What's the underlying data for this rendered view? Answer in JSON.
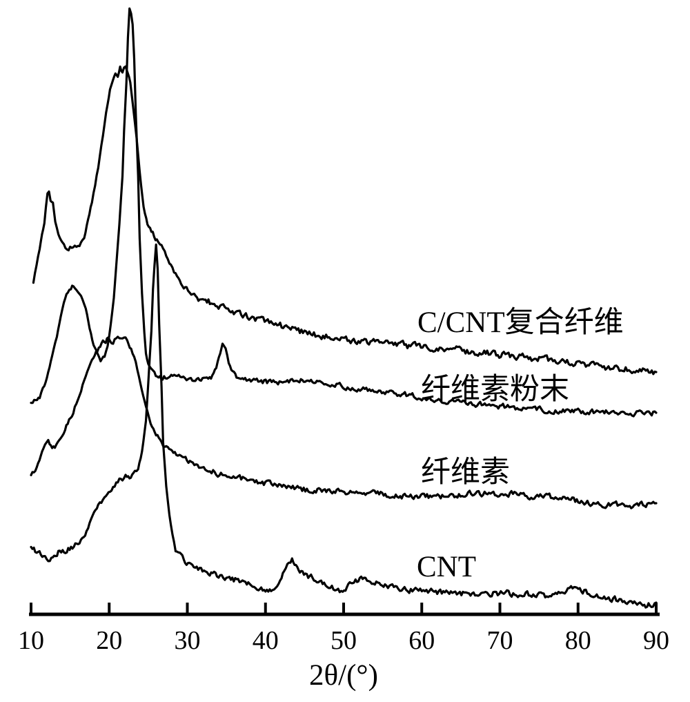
{
  "figure": {
    "background": "#ffffff",
    "ink": "#000000"
  },
  "chart_data": {
    "type": "line",
    "title": "",
    "xlabel": "2θ/(°)",
    "ylabel": "",
    "x_range": [
      10,
      90
    ],
    "x_ticks": [
      10,
      20,
      30,
      40,
      50,
      60,
      70,
      80,
      90
    ],
    "y_axis_note": "XRD intensity in arbitrary units; no y-axis or y-ticks drawn; four traces vertically offset, labels to the right of each trace",
    "grid": false,
    "intensity_units": "arbitrary units (relative height above baseline axis)",
    "series": [
      {
        "id": "c-cnt-composite-fiber",
        "name": "C/CNT复合纤维",
        "peaks_2theta": [
          12.2,
          21.8
        ],
        "noise": 4.5,
        "points": [
          [
            10.3,
            482
          ],
          [
            10.7,
            505
          ],
          [
            11.1,
            530
          ],
          [
            11.4,
            548
          ],
          [
            11.7,
            565
          ],
          [
            11.9,
            590
          ],
          [
            12.1,
            608
          ],
          [
            12.3,
            611
          ],
          [
            12.5,
            600
          ],
          [
            12.8,
            595
          ],
          [
            13.1,
            570
          ],
          [
            13.5,
            550
          ],
          [
            14.0,
            538
          ],
          [
            14.4,
            532
          ],
          [
            15.0,
            530
          ],
          [
            15.6,
            534
          ],
          [
            16.2,
            532
          ],
          [
            16.8,
            545
          ],
          [
            17.3,
            572
          ],
          [
            17.8,
            598
          ],
          [
            18.2,
            622
          ],
          [
            18.6,
            648
          ],
          [
            19.0,
            678
          ],
          [
            19.4,
            710
          ],
          [
            19.8,
            740
          ],
          [
            20.1,
            760
          ],
          [
            20.5,
            778
          ],
          [
            20.8,
            786
          ],
          [
            21.1,
            778
          ],
          [
            21.4,
            792
          ],
          [
            21.7,
            784
          ],
          [
            22.1,
            795
          ],
          [
            22.4,
            786
          ],
          [
            22.7,
            770
          ],
          [
            23.1,
            730
          ],
          [
            23.5,
            690
          ],
          [
            23.9,
            642
          ],
          [
            24.4,
            590
          ],
          [
            24.9,
            568
          ],
          [
            25.4,
            554
          ],
          [
            26.1,
            542
          ],
          [
            26.7,
            533
          ],
          [
            27.3,
            520
          ],
          [
            27.9,
            506
          ],
          [
            28.5,
            493
          ],
          [
            29.2,
            482
          ],
          [
            29.9,
            471
          ],
          [
            30.7,
            462
          ],
          [
            31.6,
            456
          ],
          [
            32.7,
            453
          ],
          [
            33.8,
            447
          ],
          [
            35.2,
            441
          ],
          [
            36.9,
            434
          ],
          [
            39.1,
            427
          ],
          [
            41.3,
            420
          ],
          [
            44.0,
            411
          ],
          [
            46.6,
            404
          ],
          [
            49.3,
            400
          ],
          [
            51.9,
            396
          ],
          [
            54.6,
            393
          ],
          [
            57.2,
            390
          ],
          [
            59.9,
            387
          ],
          [
            62.5,
            385
          ],
          [
            65.2,
            382
          ],
          [
            67.8,
            379
          ],
          [
            70.5,
            376
          ],
          [
            73.1,
            372
          ],
          [
            75.8,
            369
          ],
          [
            78.4,
            365
          ],
          [
            81.0,
            361
          ],
          [
            83.7,
            358
          ],
          [
            86.3,
            355
          ],
          [
            88.5,
            353
          ],
          [
            90.0,
            351
          ]
        ]
      },
      {
        "id": "cellulose-powder",
        "name": "纤维素粉末",
        "peaks_2theta": [
          15.1,
          22.6,
          34.5
        ],
        "noise": 3.5,
        "points": [
          [
            10.0,
            307
          ],
          [
            10.6,
            310
          ],
          [
            11.1,
            315
          ],
          [
            11.7,
            332
          ],
          [
            12.2,
            350
          ],
          [
            12.7,
            375
          ],
          [
            13.3,
            402
          ],
          [
            13.8,
            432
          ],
          [
            14.2,
            452
          ],
          [
            14.7,
            466
          ],
          [
            15.1,
            474
          ],
          [
            15.6,
            475
          ],
          [
            16.0,
            470
          ],
          [
            16.4,
            460
          ],
          [
            17.0,
            442
          ],
          [
            17.5,
            415
          ],
          [
            18.0,
            390
          ],
          [
            18.5,
            376
          ],
          [
            18.9,
            368
          ],
          [
            19.4,
            373
          ],
          [
            19.8,
            390
          ],
          [
            20.2,
            420
          ],
          [
            20.6,
            458
          ],
          [
            20.9,
            505
          ],
          [
            21.3,
            565
          ],
          [
            21.7,
            635
          ],
          [
            21.9,
            700
          ],
          [
            22.2,
            770
          ],
          [
            22.4,
            835
          ],
          [
            22.6,
            877
          ],
          [
            22.8,
            870
          ],
          [
            23.0,
            855
          ],
          [
            23.2,
            805
          ],
          [
            23.4,
            725
          ],
          [
            23.7,
            635
          ],
          [
            23.9,
            545
          ],
          [
            24.2,
            465
          ],
          [
            24.5,
            408
          ],
          [
            24.7,
            378
          ],
          [
            25.0,
            363
          ],
          [
            25.4,
            353
          ],
          [
            25.8,
            348
          ],
          [
            26.3,
            345
          ],
          [
            27.2,
            343
          ],
          [
            28.5,
            343
          ],
          [
            29.9,
            342
          ],
          [
            31.2,
            341
          ],
          [
            32.5,
            342
          ],
          [
            33.2,
            345
          ],
          [
            33.7,
            356
          ],
          [
            34.2,
            378
          ],
          [
            34.5,
            394
          ],
          [
            34.9,
            385
          ],
          [
            35.3,
            366
          ],
          [
            35.8,
            351
          ],
          [
            36.3,
            343
          ],
          [
            37.4,
            340
          ],
          [
            38.7,
            338
          ],
          [
            40.4,
            337
          ],
          [
            42.2,
            336
          ],
          [
            43.8,
            341
          ],
          [
            44.9,
            339
          ],
          [
            46.2,
            337
          ],
          [
            47.5,
            335
          ],
          [
            49.3,
            332
          ],
          [
            51.5,
            328
          ],
          [
            53.7,
            325
          ],
          [
            56.3,
            321
          ],
          [
            59.0,
            316
          ],
          [
            61.6,
            312
          ],
          [
            64.3,
            308
          ],
          [
            66.9,
            305
          ],
          [
            69.6,
            302
          ],
          [
            72.2,
            299
          ],
          [
            74.9,
            297
          ],
          [
            77.5,
            295
          ],
          [
            80.2,
            294
          ],
          [
            82.8,
            293
          ],
          [
            85.5,
            292
          ],
          [
            88.1,
            292
          ],
          [
            90.0,
            292
          ]
        ]
      },
      {
        "id": "cellulose",
        "name": "纤维素",
        "peaks_2theta": [
          12.2,
          21.2
        ],
        "noise": 4.0,
        "points": [
          [
            10.0,
            200
          ],
          [
            10.9,
            218
          ],
          [
            11.6,
            240
          ],
          [
            12.2,
            249
          ],
          [
            12.7,
            240
          ],
          [
            13.4,
            247
          ],
          [
            14.0,
            262
          ],
          [
            14.7,
            278
          ],
          [
            15.4,
            294
          ],
          [
            16.2,
            320
          ],
          [
            17.0,
            345
          ],
          [
            17.8,
            370
          ],
          [
            18.5,
            384
          ],
          [
            19.2,
            393
          ],
          [
            19.9,
            400
          ],
          [
            20.5,
            396
          ],
          [
            21.1,
            403
          ],
          [
            21.7,
            398
          ],
          [
            22.3,
            395
          ],
          [
            22.8,
            385
          ],
          [
            23.4,
            365
          ],
          [
            24.0,
            332
          ],
          [
            24.7,
            298
          ],
          [
            25.3,
            275
          ],
          [
            26.0,
            260
          ],
          [
            26.7,
            249
          ],
          [
            27.5,
            240
          ],
          [
            28.4,
            233
          ],
          [
            29.4,
            226
          ],
          [
            30.7,
            217
          ],
          [
            32.5,
            209
          ],
          [
            34.7,
            202
          ],
          [
            36.9,
            196
          ],
          [
            39.6,
            190
          ],
          [
            42.7,
            184
          ],
          [
            45.7,
            180
          ],
          [
            49.3,
            177
          ],
          [
            52.8,
            175
          ],
          [
            56.3,
            173
          ],
          [
            59.9,
            171
          ],
          [
            63.4,
            172
          ],
          [
            66.9,
            176
          ],
          [
            70.5,
            175
          ],
          [
            74.0,
            172
          ],
          [
            77.5,
            168
          ],
          [
            81.0,
            163
          ],
          [
            84.1,
            159
          ],
          [
            86.8,
            156
          ],
          [
            88.5,
            159
          ],
          [
            90.0,
            161
          ]
        ]
      },
      {
        "id": "cnt",
        "name": "CNT",
        "peaks_2theta": [
          21.8,
          26.0,
          43.3
        ],
        "noise": 4.0,
        "points": [
          [
            10.0,
            97
          ],
          [
            10.9,
            89
          ],
          [
            11.8,
            82
          ],
          [
            12.6,
            80
          ],
          [
            13.5,
            90
          ],
          [
            14.4,
            93
          ],
          [
            15.3,
            96
          ],
          [
            16.2,
            107
          ],
          [
            17.1,
            120
          ],
          [
            17.9,
            144
          ],
          [
            18.6,
            160
          ],
          [
            19.4,
            169
          ],
          [
            20.1,
            179
          ],
          [
            20.9,
            190
          ],
          [
            21.5,
            196
          ],
          [
            22.1,
            200
          ],
          [
            22.6,
            196
          ],
          [
            23.1,
            202
          ],
          [
            23.7,
            212
          ],
          [
            24.2,
            235
          ],
          [
            24.7,
            280
          ],
          [
            25.0,
            335
          ],
          [
            25.4,
            410
          ],
          [
            25.6,
            470
          ],
          [
            25.8,
            505
          ],
          [
            26.0,
            535
          ],
          [
            26.2,
            500
          ],
          [
            26.4,
            420
          ],
          [
            26.7,
            330
          ],
          [
            26.9,
            250
          ],
          [
            27.3,
            185
          ],
          [
            27.7,
            142
          ],
          [
            28.1,
            114
          ],
          [
            28.5,
            93
          ],
          [
            29.2,
            84
          ],
          [
            29.9,
            73
          ],
          [
            31.2,
            68
          ],
          [
            32.5,
            61
          ],
          [
            33.8,
            56
          ],
          [
            35.2,
            52
          ],
          [
            36.5,
            49
          ],
          [
            37.8,
            45
          ],
          [
            39.1,
            40
          ],
          [
            40.0,
            35
          ],
          [
            40.9,
            38
          ],
          [
            41.7,
            47
          ],
          [
            42.4,
            64
          ],
          [
            43.0,
            78
          ],
          [
            43.4,
            81
          ],
          [
            43.9,
            72
          ],
          [
            44.4,
            63
          ],
          [
            45.1,
            57
          ],
          [
            46.2,
            52
          ],
          [
            47.5,
            44
          ],
          [
            48.7,
            38
          ],
          [
            49.7,
            34
          ],
          [
            50.6,
            41
          ],
          [
            51.7,
            49
          ],
          [
            52.8,
            52
          ],
          [
            54.0,
            46
          ],
          [
            55.3,
            42
          ],
          [
            56.8,
            38
          ],
          [
            59.0,
            35
          ],
          [
            61.6,
            33
          ],
          [
            64.3,
            31
          ],
          [
            67.4,
            29
          ],
          [
            70.5,
            31
          ],
          [
            73.5,
            29
          ],
          [
            75.8,
            27
          ],
          [
            77.5,
            32
          ],
          [
            79.3,
            38
          ],
          [
            80.6,
            34
          ],
          [
            82.4,
            28
          ],
          [
            84.1,
            23
          ],
          [
            85.9,
            19
          ],
          [
            87.2,
            15
          ],
          [
            88.3,
            11
          ],
          [
            89.2,
            14
          ],
          [
            90.0,
            17
          ]
        ]
      }
    ]
  }
}
